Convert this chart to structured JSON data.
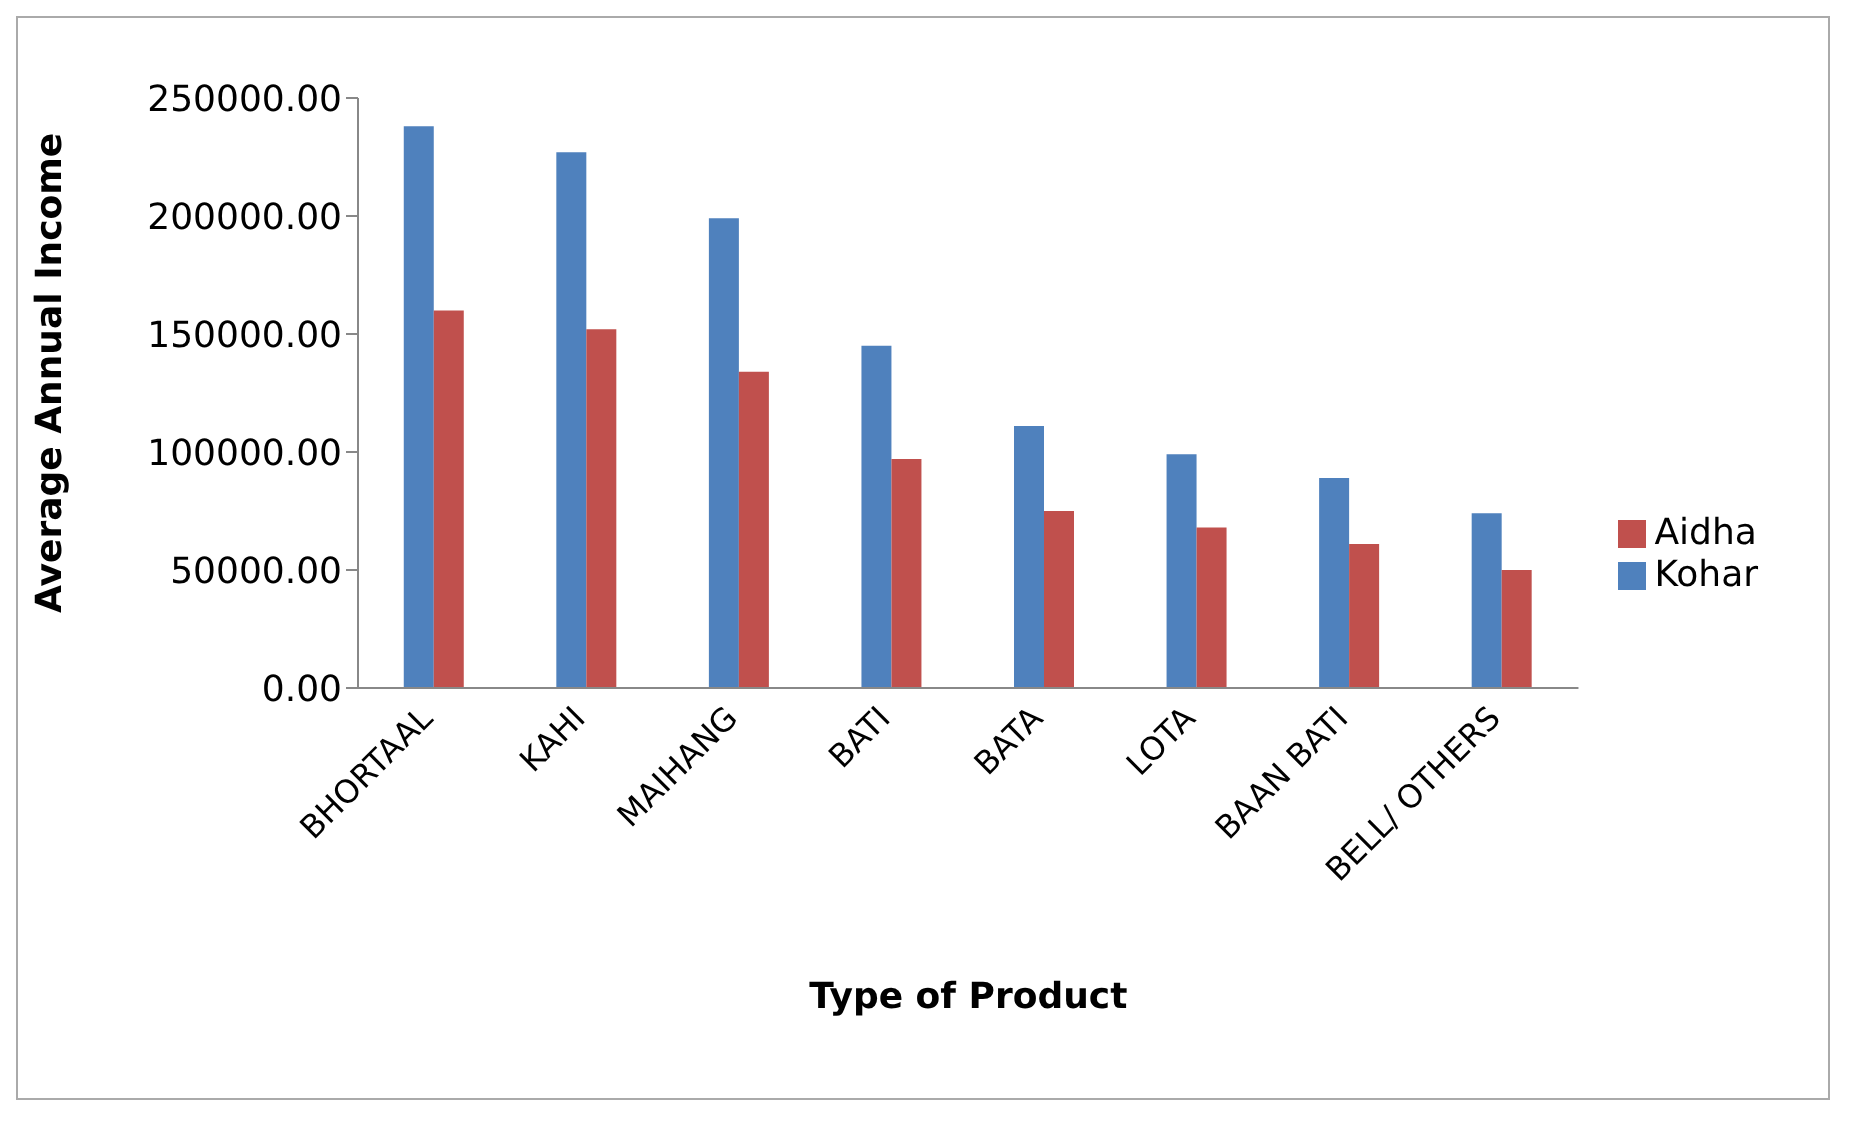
{
  "chart_data": {
    "type": "bar",
    "xlabel": "Type of Product",
    "ylabel": "Average Annual Income",
    "categories": [
      "BHORTAAL",
      "KAHI",
      "MAIHANG",
      "BATI",
      "BATA",
      "LOTA",
      "BAAN BATI",
      "BELL/ OTHERS"
    ],
    "series": [
      {
        "name": "Kohar",
        "color": "#4f81bd",
        "values": [
          238000,
          227000,
          199000,
          145000,
          111000,
          99000,
          89000,
          74000
        ]
      },
      {
        "name": "Aidha",
        "color": "#c0504d",
        "values": [
          160000,
          152000,
          134000,
          97000,
          75000,
          68000,
          61000,
          50000
        ]
      }
    ],
    "ylim": [
      0,
      250000
    ],
    "yticks": [
      {
        "value": 0,
        "label": "0.00"
      },
      {
        "value": 50000,
        "label": "50000.00"
      },
      {
        "value": 100000,
        "label": "100000.00"
      },
      {
        "value": 150000,
        "label": "150000.00"
      },
      {
        "value": 200000,
        "label": "200000.00"
      },
      {
        "value": 250000,
        "label": "250000.00"
      }
    ],
    "grid": false,
    "legend": "right"
  }
}
